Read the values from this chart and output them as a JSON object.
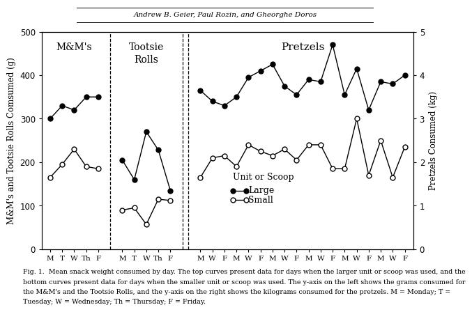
{
  "header_text": "Andrew B. Geier, Paul Rozin, and Gheorghe Doros",
  "left_ylabel": "M&M's and Tootsie Rolls Comsumed (g)",
  "right_ylabel": "Pretzels Consumed (kg)",
  "ylim_left": [
    0,
    500
  ],
  "ylim_right": [
    0,
    5
  ],
  "yticks_left": [
    0,
    100,
    200,
    300,
    400,
    500
  ],
  "yticks_right": [
    0,
    1,
    2,
    3,
    4,
    5
  ],
  "legend_title": "Unit or Scoop",
  "legend_large": "Large",
  "legend_small": "Small",
  "caption_line1": "Fig. 1.  Mean snack weight consumed by day. The top curves present data for days when the larger unit or scoop was used, and the",
  "caption_line2": "bottom curves present data for days when the smaller unit or scoop was used. The y-axis on the left shows the grams consumed for",
  "caption_line3": "the M&M's and the Tootsie Rolls, and the y-axis on the right shows the kilograms consumed for the pretzels. M = Monday; T =",
  "caption_line4": "Tuesday; W = Wednesday; Th = Thursday; F = Friday.",
  "mm_xticks": [
    "M",
    "T",
    "W",
    "Th",
    "F"
  ],
  "mm_large": [
    300,
    330,
    320,
    350,
    350
  ],
  "mm_small": [
    165,
    195,
    230,
    190,
    185
  ],
  "tootsie_xticks": [
    "M",
    "T",
    "W",
    "Th",
    "F"
  ],
  "tootsie_large": [
    205,
    160,
    270,
    228,
    135
  ],
  "tootsie_small": [
    90,
    95,
    57,
    115,
    112
  ],
  "pretzel_week_xticks": [
    "M",
    "W",
    "F",
    "M",
    "W",
    "F",
    "M",
    "W",
    "F",
    "M",
    "W",
    "F",
    "M",
    "W",
    "F",
    "M",
    "W",
    "F"
  ],
  "pretzel_large": [
    365,
    340,
    330,
    350,
    395,
    410,
    425,
    375,
    355,
    390,
    385,
    470,
    355,
    415,
    320,
    385,
    380,
    400
  ],
  "pretzel_small": [
    165,
    210,
    215,
    190,
    240,
    225,
    215,
    230,
    205,
    240,
    240,
    185,
    185,
    300,
    170,
    250,
    165,
    235
  ],
  "background_color": "#ffffff",
  "markersize": 5,
  "linewidth": 1.0
}
